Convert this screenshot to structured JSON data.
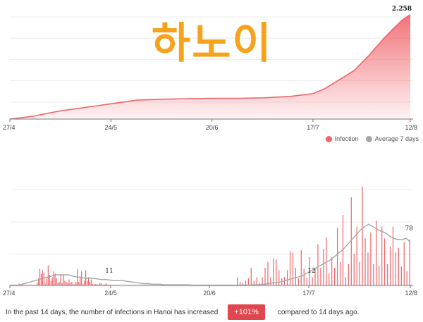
{
  "overlay_title": "하노이",
  "legend": {
    "infection_label": "Infection",
    "average_label": "Average 7 days",
    "infection_color": "#f0646b",
    "average_color": "#a6a6a6"
  },
  "footer": {
    "text_before": "In the past 14 days, the number of infections in Hanoi has increased",
    "badge": "+101%",
    "text_after": "compared to 14 days ago."
  },
  "chart_data": [
    {
      "type": "area",
      "title": "",
      "x_ticks": [
        "27/4",
        "24/5",
        "20/6",
        "17/7",
        "12/8"
      ],
      "x_range": [
        "27/4",
        "12/8"
      ],
      "ylim": [
        0,
        2300
      ],
      "grid": true,
      "end_label": "2.258",
      "series": [
        {
          "name": "Infection",
          "x": [
            "27/4",
            "3/5",
            "10/5",
            "17/5",
            "24/5",
            "31/5",
            "7/6",
            "14/6",
            "20/6",
            "27/6",
            "4/7",
            "11/7",
            "17/7",
            "20/7",
            "24/7",
            "28/7",
            "1/8",
            "5/8",
            "8/8",
            "10/8",
            "12/8"
          ],
          "values": [
            0,
            60,
            170,
            250,
            330,
            410,
            430,
            440,
            450,
            450,
            460,
            490,
            550,
            650,
            850,
            1050,
            1380,
            1750,
            2000,
            2150,
            2258
          ]
        }
      ]
    },
    {
      "type": "bar",
      "title": "",
      "x_ticks": [
        "27/4",
        "24/5",
        "20/6",
        "17/7",
        "12/8"
      ],
      "ylim": [
        0,
        180
      ],
      "grid": true,
      "annotations": [
        {
          "x": "24/5",
          "text": "11"
        },
        {
          "x": "17/7",
          "text": "12"
        },
        {
          "x": "12/8",
          "text": "78"
        }
      ],
      "series": [
        {
          "name": "Infection",
          "values": [
            0,
            0,
            0,
            0,
            0,
            0,
            3,
            0,
            0,
            0,
            0,
            1,
            0,
            0,
            0,
            0,
            0,
            0,
            0,
            4,
            12,
            28,
            20,
            26,
            20,
            2,
            12,
            34,
            18,
            8,
            14,
            24,
            20,
            12,
            4,
            6,
            18,
            4,
            18,
            8,
            6,
            4,
            10,
            4,
            6,
            2,
            2,
            6,
            28,
            6,
            14,
            24,
            2,
            8,
            26,
            8,
            14,
            6,
            10,
            2,
            2,
            2,
            2,
            1,
            3,
            4,
            1,
            1,
            2,
            3,
            1,
            1,
            0,
            0,
            0,
            0,
            1,
            0,
            0,
            0,
            0,
            0,
            0,
            0,
            0,
            0,
            0,
            0,
            0,
            0,
            0,
            0,
            0,
            0,
            0,
            0,
            0,
            0,
            0,
            0,
            0,
            0,
            0,
            0,
            0,
            0,
            0,
            0,
            0,
            0,
            0,
            0,
            0,
            0,
            0,
            0,
            0,
            0,
            0,
            0,
            2,
            0,
            1,
            0,
            0,
            0,
            0,
            1,
            0,
            0,
            0,
            0,
            0,
            0,
            0,
            0,
            0,
            0,
            0,
            0,
            0,
            0,
            0,
            0,
            0,
            0,
            0,
            0,
            0,
            0,
            0,
            0,
            0,
            0,
            0,
            0,
            0,
            0,
            0,
            0,
            0,
            0,
            0,
            14,
            0,
            6,
            0,
            4,
            0,
            8,
            0,
            12,
            0,
            30,
            0,
            8,
            0,
            14,
            0,
            4,
            0,
            14,
            0,
            30,
            0,
            40,
            0,
            14,
            0,
            46,
            0,
            44,
            0,
            26,
            0,
            12,
            0,
            14,
            0,
            26,
            0,
            58,
            0,
            56,
            0,
            30,
            0,
            12,
            0,
            60,
            0,
            28,
            0,
            12,
            0,
            48,
            0,
            14,
            0,
            28,
            0,
            70,
            0,
            30,
            0,
            62,
            0,
            82,
            0,
            20,
            0,
            48,
            0,
            30,
            0,
            98,
            0,
            40,
            0,
            120,
            0,
            14,
            0,
            36,
            0,
            150,
            0,
            54,
            0,
            100,
            0,
            40,
            0,
            168,
            0,
            80,
            0,
            56,
            0,
            90,
            0,
            36,
            0,
            110,
            0,
            34,
            0,
            100,
            0,
            80,
            0,
            36,
            0,
            66,
            0,
            100,
            0,
            56,
            0,
            64,
            0,
            32,
            0,
            74,
            0,
            24,
            0,
            78
          ]
        },
        {
          "name": "Average 7 days",
          "values": [
            0,
            0,
            0,
            2,
            4,
            6,
            8,
            10,
            12,
            14,
            16,
            18,
            18,
            18,
            18,
            16,
            14,
            14,
            12,
            12,
            12,
            11,
            10,
            10,
            9,
            8,
            8,
            8,
            7,
            6,
            5,
            4,
            3,
            3,
            2,
            2,
            2,
            1,
            1,
            1,
            1,
            1,
            1,
            1,
            0,
            0,
            0,
            0,
            0,
            0,
            0,
            0,
            0,
            0,
            0,
            0,
            0,
            0,
            1,
            1,
            1,
            2,
            3,
            4,
            5,
            6,
            8,
            10,
            12,
            14,
            16,
            20,
            24,
            28,
            32,
            36,
            40,
            44,
            50,
            56,
            62,
            70,
            78,
            86,
            94,
            100,
            104,
            100,
            96,
            92,
            90,
            84,
            80,
            78,
            78,
            80,
            74
          ]
        }
      ]
    }
  ]
}
